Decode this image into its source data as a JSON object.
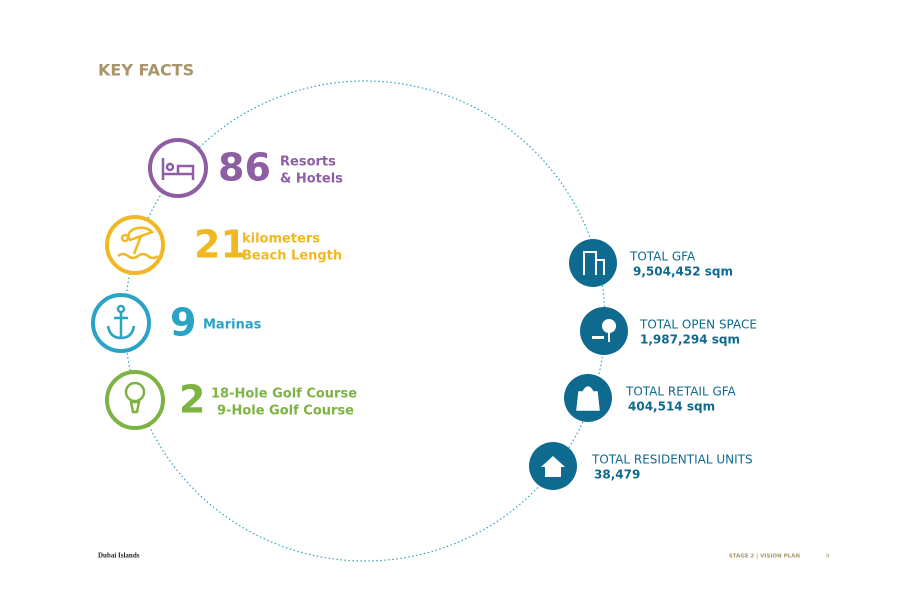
{
  "header": {
    "title": "KEY FACTS"
  },
  "facts": [
    {
      "number": "86",
      "label": [
        "Resorts",
        "& Hotels"
      ]
    },
    {
      "number": "21",
      "label": [
        "kilometers",
        "Beach Length"
      ]
    },
    {
      "number": "9",
      "label": [
        "Marinas"
      ]
    },
    {
      "number": "2",
      "label": [
        "18-Hole Golf Course",
        "9-Hole Golf Course"
      ]
    }
  ],
  "stats": [
    {
      "label": "TOTAL GFA",
      "value": "9,504,452 sqm"
    },
    {
      "label": "TOTAL OPEN SPACE",
      "value": "1,987,294 sqm"
    },
    {
      "label": "TOTAL RETAIL GFA",
      "value": "404,514 sqm"
    },
    {
      "label": "TOTAL RESIDENTIAL UNITS",
      "value": "38,479"
    }
  ],
  "footer": {
    "left": "Dubai Islands",
    "right": "STAGE 2 | VISION PLAN",
    "page": "9"
  }
}
